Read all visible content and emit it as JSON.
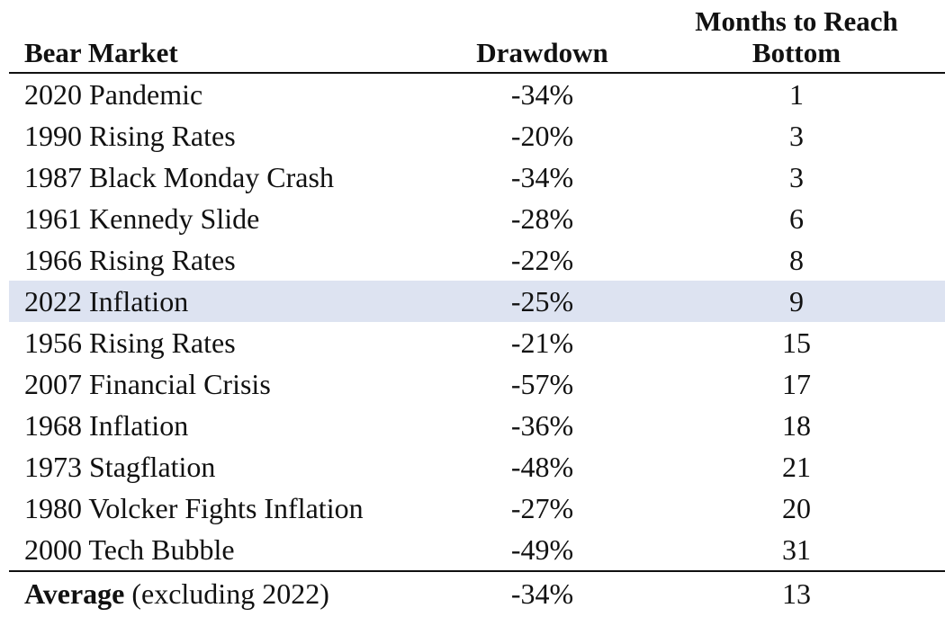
{
  "table": {
    "headers": {
      "name": "Bear Market",
      "drawdown": "Drawdown",
      "months_line1": "Months to Reach",
      "months_line2": "Bottom"
    },
    "rows": [
      {
        "name": "2020 Pandemic",
        "drawdown": "-34%",
        "months": "1"
      },
      {
        "name": "1990 Rising Rates",
        "drawdown": "-20%",
        "months": "3"
      },
      {
        "name": "1987 Black Monday Crash",
        "drawdown": "-34%",
        "months": "3"
      },
      {
        "name": "1961 Kennedy Slide",
        "drawdown": "-28%",
        "months": "6"
      },
      {
        "name": "1966 Rising Rates",
        "drawdown": "-22%",
        "months": "8"
      },
      {
        "name": "2022 Inflation",
        "drawdown": "-25%",
        "months": "9"
      },
      {
        "name": "1956 Rising Rates",
        "drawdown": "-21%",
        "months": "15"
      },
      {
        "name": "2007 Financial Crisis",
        "drawdown": "-57%",
        "months": "17"
      },
      {
        "name": "1968 Inflation",
        "drawdown": "-36%",
        "months": "18"
      },
      {
        "name": "1973 Stagflation",
        "drawdown": "-48%",
        "months": "21"
      },
      {
        "name": "1980 Volcker Fights Inflation",
        "drawdown": "-27%",
        "months": "20"
      },
      {
        "name": "2000 Tech Bubble",
        "drawdown": "-49%",
        "months": "31"
      }
    ],
    "highlight_color": "#dde3f1",
    "footer": {
      "label_bold": "Average",
      "label_rest": " (excluding 2022)",
      "drawdown": "-34%",
      "months": "13"
    }
  }
}
